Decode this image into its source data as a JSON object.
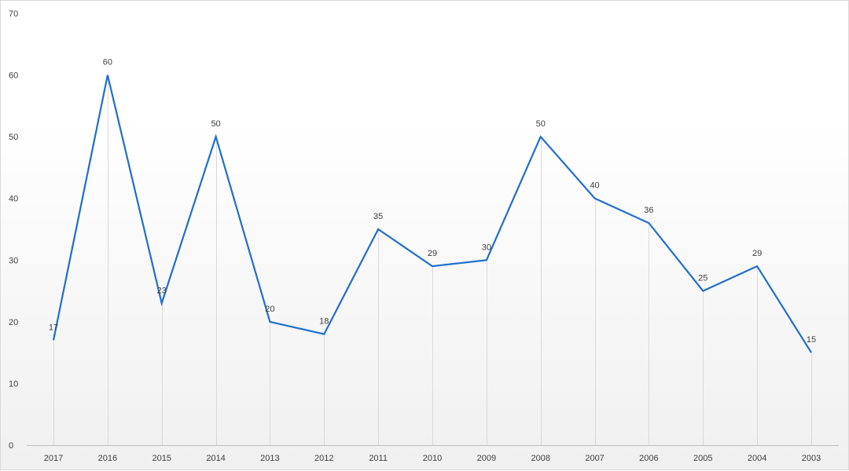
{
  "chart_data": {
    "type": "line",
    "title": "",
    "xlabel": "",
    "ylabel": "",
    "categories": [
      "2017",
      "2016",
      "2015",
      "2014",
      "2013",
      "2012",
      "2011",
      "2010",
      "2009",
      "2008",
      "2007",
      "2006",
      "2005",
      "2004",
      "2003"
    ],
    "series": [
      {
        "values": [
          17,
          60,
          23,
          50,
          20,
          18,
          35,
          29,
          30,
          50,
          40,
          36,
          25,
          29,
          15
        ],
        "color": "#1f6fcc"
      }
    ],
    "ylim": [
      0,
      70
    ],
    "yticks": [
      0,
      10,
      20,
      30,
      40,
      50,
      60,
      70
    ],
    "data_labels": true,
    "drop_lines": true,
    "grid": false,
    "legend": "none"
  }
}
